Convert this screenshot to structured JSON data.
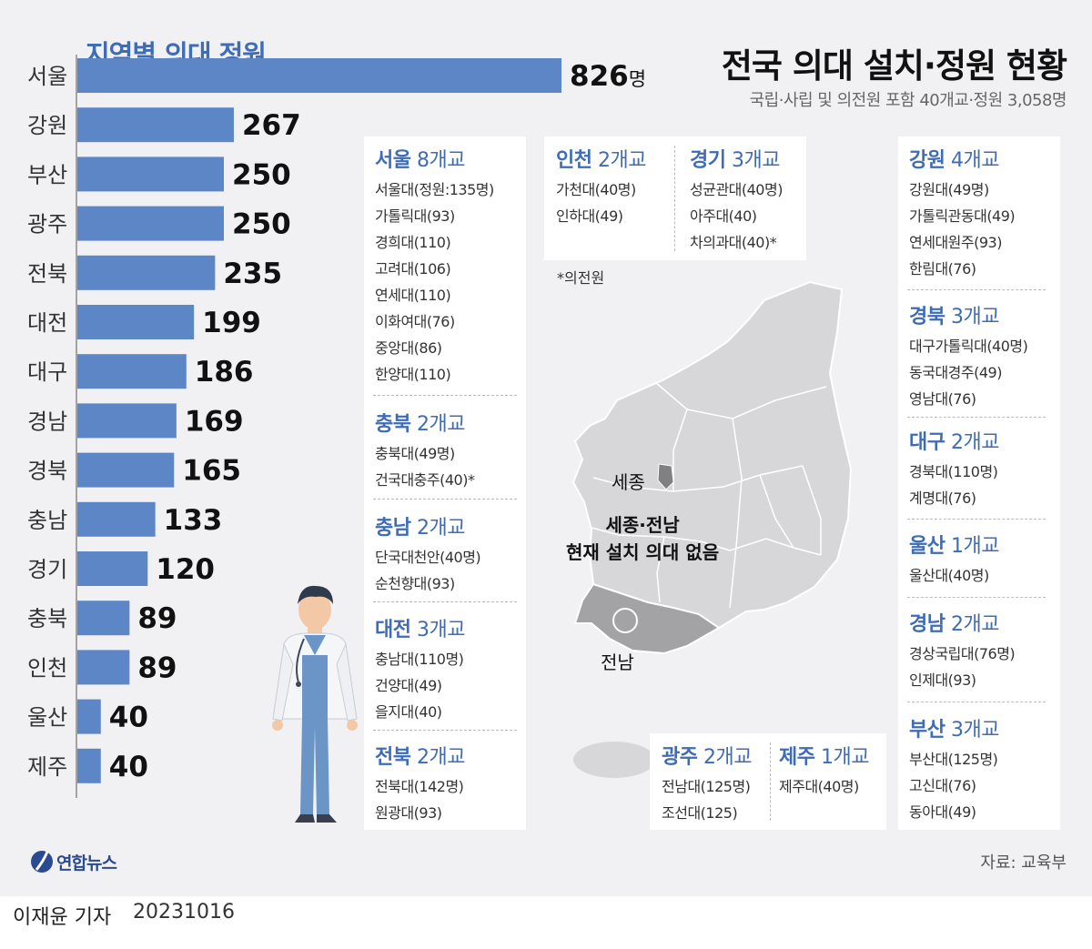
{
  "header": {
    "title": "전국 의대 설치·정원 현황",
    "subtitle": "국립·사립 및 의전원 포함 40개교·정원 3,058명"
  },
  "chart_data": {
    "type": "bar",
    "orientation": "horizontal",
    "title": "지역별 의대 정원",
    "categories": [
      "서울",
      "강원",
      "부산",
      "광주",
      "전북",
      "대전",
      "대구",
      "경남",
      "경북",
      "충남",
      "경기",
      "충북",
      "인천",
      "울산",
      "제주"
    ],
    "values": [
      826,
      267,
      250,
      250,
      235,
      199,
      186,
      169,
      165,
      133,
      120,
      89,
      89,
      40,
      40
    ],
    "first_value_suffix": "명",
    "bar_color": "#5d86c6"
  },
  "cards": {
    "seoul": {
      "name": "서울",
      "count": "8개교",
      "items": [
        "서울대(정원:135명)",
        "가톨릭대(93)",
        "경희대(110)",
        "고려대(106)",
        "연세대(110)",
        "이화여대(76)",
        "중앙대(86)",
        "한양대(110)"
      ]
    },
    "chungbuk": {
      "name": "충북",
      "count": "2개교",
      "items": [
        "충북대(49명)",
        "건국대충주(40)*"
      ]
    },
    "chungnam": {
      "name": "충남",
      "count": "2개교",
      "items": [
        "단국대천안(40명)",
        "순천향대(93)"
      ]
    },
    "daejeon": {
      "name": "대전",
      "count": "3개교",
      "items": [
        "충남대(110명)",
        "건양대(49)",
        "을지대(40)"
      ]
    },
    "jeonbuk": {
      "name": "전북",
      "count": "2개교",
      "items": [
        "전북대(142명)",
        "원광대(93)"
      ]
    },
    "incheon": {
      "name": "인천",
      "count": "2개교",
      "items": [
        "가천대(40명)",
        "인하대(49)"
      ]
    },
    "gyeonggi": {
      "name": "경기",
      "count": "3개교",
      "items": [
        "성균관대(40명)",
        "아주대(40)",
        "차의과대(40)*"
      ]
    },
    "gangwon": {
      "name": "강원",
      "count": "4개교",
      "items": [
        "강원대(49명)",
        "가톨릭관동대(49)",
        "연세대원주(93)",
        "한림대(76)"
      ]
    },
    "gyeongbuk": {
      "name": "경북",
      "count": "3개교",
      "items": [
        "대구가톨릭대(40명)",
        "동국대경주(49)",
        "영남대(76)"
      ]
    },
    "daegu": {
      "name": "대구",
      "count": "2개교",
      "items": [
        "경북대(110명)",
        "계명대(76)"
      ]
    },
    "ulsan": {
      "name": "울산",
      "count": "1개교",
      "items": [
        "울산대(40명)"
      ]
    },
    "gyeongnam": {
      "name": "경남",
      "count": "2개교",
      "items": [
        "경상국립대(76명)",
        "인제대(93)"
      ]
    },
    "busan": {
      "name": "부산",
      "count": "3개교",
      "items": [
        "부산대(125명)",
        "고신대(76)",
        "동아대(49)"
      ]
    },
    "gwangju": {
      "name": "광주",
      "count": "2개교",
      "items": [
        "전남대(125명)",
        "조선대(125)"
      ]
    },
    "jeju": {
      "name": "제주",
      "count": "1개교",
      "items": [
        "제주대(40명)"
      ]
    }
  },
  "note": "*의전원",
  "map": {
    "sejong_label": "세종",
    "jeonnam_label": "전남",
    "note_line1": "세종·전남",
    "note_line2": "현재 설치 의대 없음"
  },
  "source": "자료: 교육부",
  "logo": "연합뉴스",
  "footer": {
    "credit": "이재윤 기자",
    "date": "20231016"
  }
}
